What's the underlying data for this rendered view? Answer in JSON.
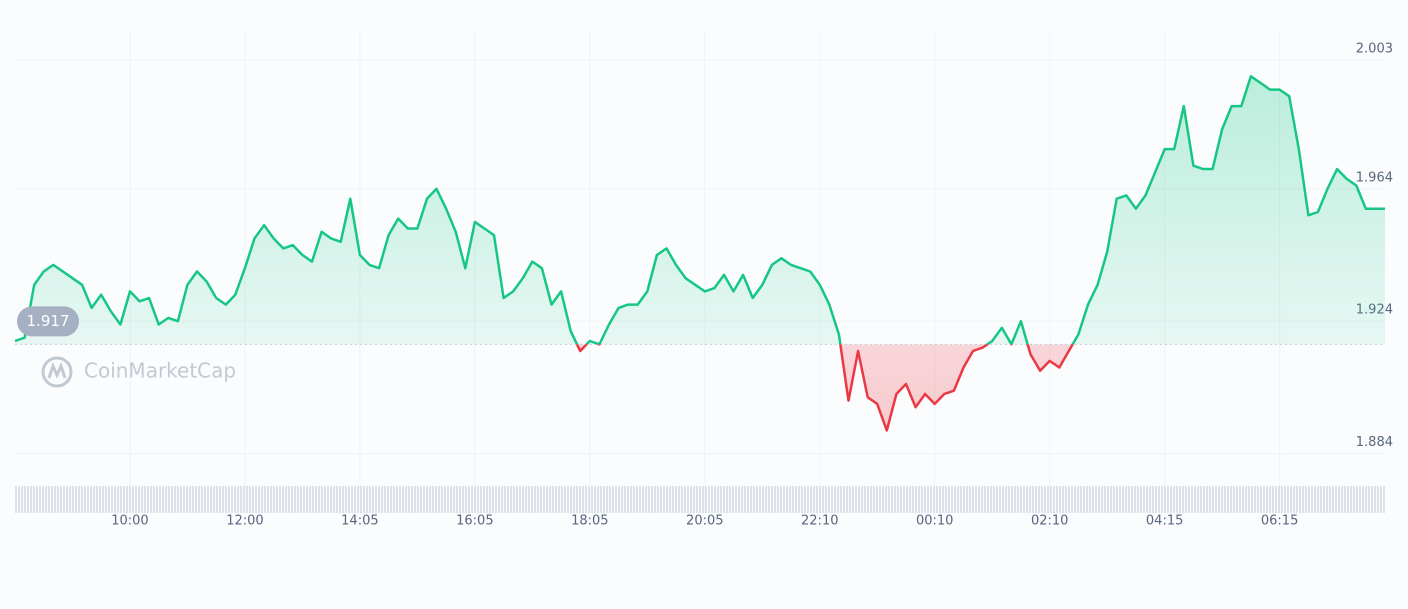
{
  "chart_data": {
    "type": "line",
    "watermark": "CoinMarketCap",
    "reference": 1.917,
    "reference_label": "1.917",
    "ylim": [
      1.876,
      2.012
    ],
    "yticks": [
      1.884,
      1.924,
      1.964,
      2.003
    ],
    "grid": true,
    "color": "#16c784",
    "down_color": "#ea3943",
    "categories": [
      null,
      null,
      null,
      null,
      null,
      null,
      null,
      null,
      null,
      null,
      null,
      null,
      "10:00",
      null,
      null,
      null,
      null,
      null,
      null,
      null,
      null,
      null,
      null,
      null,
      "12:00",
      null,
      null,
      null,
      null,
      null,
      null,
      null,
      null,
      null,
      null,
      null,
      "14:05",
      null,
      null,
      null,
      null,
      null,
      null,
      null,
      null,
      null,
      null,
      null,
      "16:05",
      null,
      null,
      null,
      null,
      null,
      null,
      null,
      null,
      null,
      null,
      null,
      "18:05",
      null,
      null,
      null,
      null,
      null,
      null,
      null,
      null,
      null,
      null,
      null,
      "20:05",
      null,
      null,
      null,
      null,
      null,
      null,
      null,
      null,
      null,
      null,
      null,
      "22:10",
      null,
      null,
      null,
      null,
      null,
      null,
      null,
      null,
      null,
      null,
      null,
      "00:10",
      null,
      null,
      null,
      null,
      null,
      null,
      null,
      null,
      null,
      null,
      null,
      "02:10",
      null,
      null,
      null,
      null,
      null,
      null,
      null,
      null,
      null,
      null,
      null,
      "04:15",
      null,
      null,
      null,
      null,
      null,
      null,
      null,
      null,
      null,
      null,
      null,
      "06:15",
      null,
      null,
      null,
      null,
      null,
      null,
      null,
      null,
      null,
      null,
      null
    ],
    "series": [
      {
        "values": [
          1.918,
          1.919,
          1.935,
          1.939,
          1.941,
          1.939,
          1.937,
          1.935,
          1.928,
          1.932,
          1.927,
          1.923,
          1.933,
          1.93,
          1.931,
          1.923,
          1.925,
          1.924,
          1.935,
          1.939,
          1.936,
          1.931,
          1.929,
          1.932,
          1.94,
          1.949,
          1.953,
          1.949,
          1.946,
          1.947,
          1.944,
          1.942,
          1.951,
          1.949,
          1.948,
          1.961,
          1.944,
          1.941,
          1.94,
          1.95,
          1.955,
          1.952,
          1.952,
          1.961,
          1.964,
          1.958,
          1.951,
          1.94,
          1.954,
          1.952,
          1.95,
          1.931,
          1.933,
          1.937,
          1.942,
          1.94,
          1.929,
          1.933,
          1.921,
          1.915,
          1.918,
          1.917,
          1.923,
          1.928,
          1.929,
          1.929,
          1.933,
          1.944,
          1.946,
          1.941,
          1.937,
          1.935,
          1.933,
          1.934,
          1.938,
          1.933,
          1.938,
          1.931,
          1.935,
          1.941,
          1.943,
          1.941,
          1.94,
          1.939,
          1.935,
          1.929,
          1.92,
          1.9,
          1.915,
          1.901,
          1.899,
          1.891,
          1.902,
          1.905,
          1.898,
          1.902,
          1.899,
          1.902,
          1.903,
          1.91,
          1.915,
          1.916,
          1.918,
          1.922,
          1.917,
          1.924,
          1.914,
          1.909,
          1.912,
          1.91,
          1.915,
          1.92,
          1.929,
          1.935,
          1.945,
          1.961,
          1.962,
          1.958,
          1.962,
          1.969,
          1.976,
          1.976,
          1.989,
          1.971,
          1.97,
          1.97,
          1.982,
          1.989,
          1.989,
          1.998,
          1.996,
          1.994,
          1.994,
          1.992,
          1.976,
          1.956,
          1.957,
          1.964,
          1.97,
          1.967,
          1.965,
          1.958,
          1.958,
          1.958
        ]
      }
    ]
  }
}
